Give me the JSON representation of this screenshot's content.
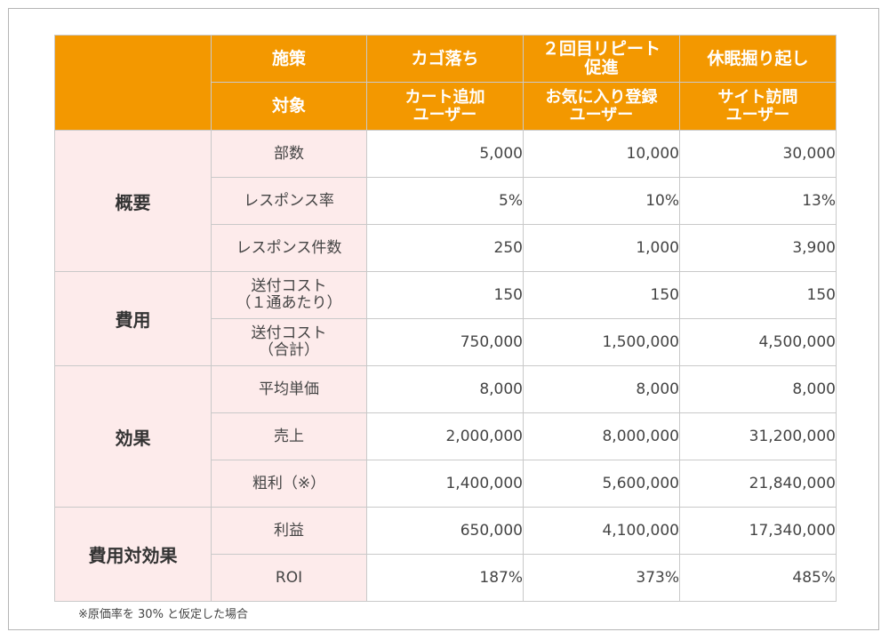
{
  "header": {
    "row1_label": "施策",
    "row2_label": "対象",
    "campaigns": [
      {
        "name": "カゴ落ち",
        "target": "カート追加\nユーザー"
      },
      {
        "name": "２回目リピート\n促進",
        "target": "お気に入り登録\nユーザー"
      },
      {
        "name": "休眠掘り起し",
        "target": "サイト訪問\nユーザー"
      }
    ]
  },
  "groups": {
    "overview": "概要",
    "cost": "費用",
    "effect": "効果",
    "roi": "費用対効果"
  },
  "rows": [
    {
      "label": "部数",
      "values": [
        "5,000",
        "10,000",
        "30,000"
      ]
    },
    {
      "label": "レスポンス率",
      "values": [
        "5%",
        "10%",
        "13%"
      ]
    },
    {
      "label": "レスポンス件数",
      "values": [
        "250",
        "1,000",
        "3,900"
      ]
    },
    {
      "label": "送付コスト\n（１通あたり）",
      "values": [
        "150",
        "150",
        "150"
      ]
    },
    {
      "label": "送付コスト\n（合計）",
      "values": [
        "750,000",
        "1,500,000",
        "4,500,000"
      ]
    },
    {
      "label": "平均単価",
      "values": [
        "8,000",
        "8,000",
        "8,000"
      ]
    },
    {
      "label": "売上",
      "values": [
        "2,000,000",
        "8,000,000",
        "31,200,000"
      ]
    },
    {
      "label": "粗利（※）",
      "values": [
        "1,400,000",
        "5,600,000",
        "21,840,000"
      ]
    },
    {
      "label": "利益",
      "values": [
        "650,000",
        "4,100,000",
        "17,340,000"
      ]
    },
    {
      "label": "ROI",
      "values": [
        "187%",
        "373%",
        "485%"
      ]
    }
  ],
  "footnote": "※原価率を 30% と仮定した場合",
  "colors": {
    "header_bg": "#f39800",
    "label_bg": "#fdebeb",
    "border": "#c9c9c9"
  }
}
